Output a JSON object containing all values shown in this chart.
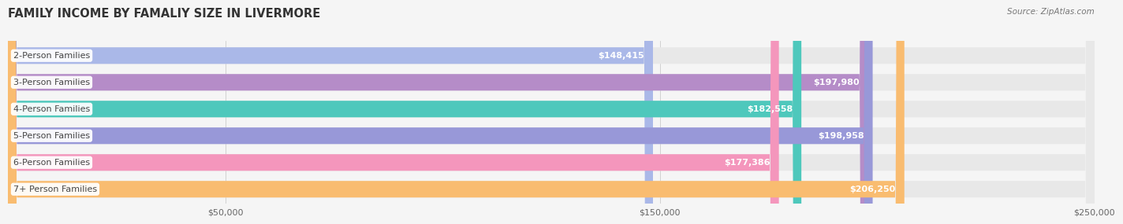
{
  "title": "FAMILY INCOME BY FAMALIY SIZE IN LIVERMORE",
  "source": "Source: ZipAtlas.com",
  "categories": [
    "2-Person Families",
    "3-Person Families",
    "4-Person Families",
    "5-Person Families",
    "6-Person Families",
    "7+ Person Families"
  ],
  "values": [
    148415,
    197980,
    182558,
    198958,
    177386,
    206250
  ],
  "labels": [
    "$148,415",
    "$197,980",
    "$182,558",
    "$198,958",
    "$177,386",
    "$206,250"
  ],
  "bar_colors": [
    "#aab8e8",
    "#b58cc8",
    "#4ec8bc",
    "#9898d8",
    "#f496bc",
    "#f9bc70"
  ],
  "bar_bg_color": "#e8e8e8",
  "max_value": 250000,
  "xticks": [
    50000,
    150000,
    250000
  ],
  "xtick_labels": [
    "$50,000",
    "$150,000",
    "$250,000"
  ],
  "background_color": "#f5f5f5",
  "title_fontsize": 10.5,
  "bar_label_fontsize": 8,
  "category_fontsize": 8,
  "source_fontsize": 7.5
}
